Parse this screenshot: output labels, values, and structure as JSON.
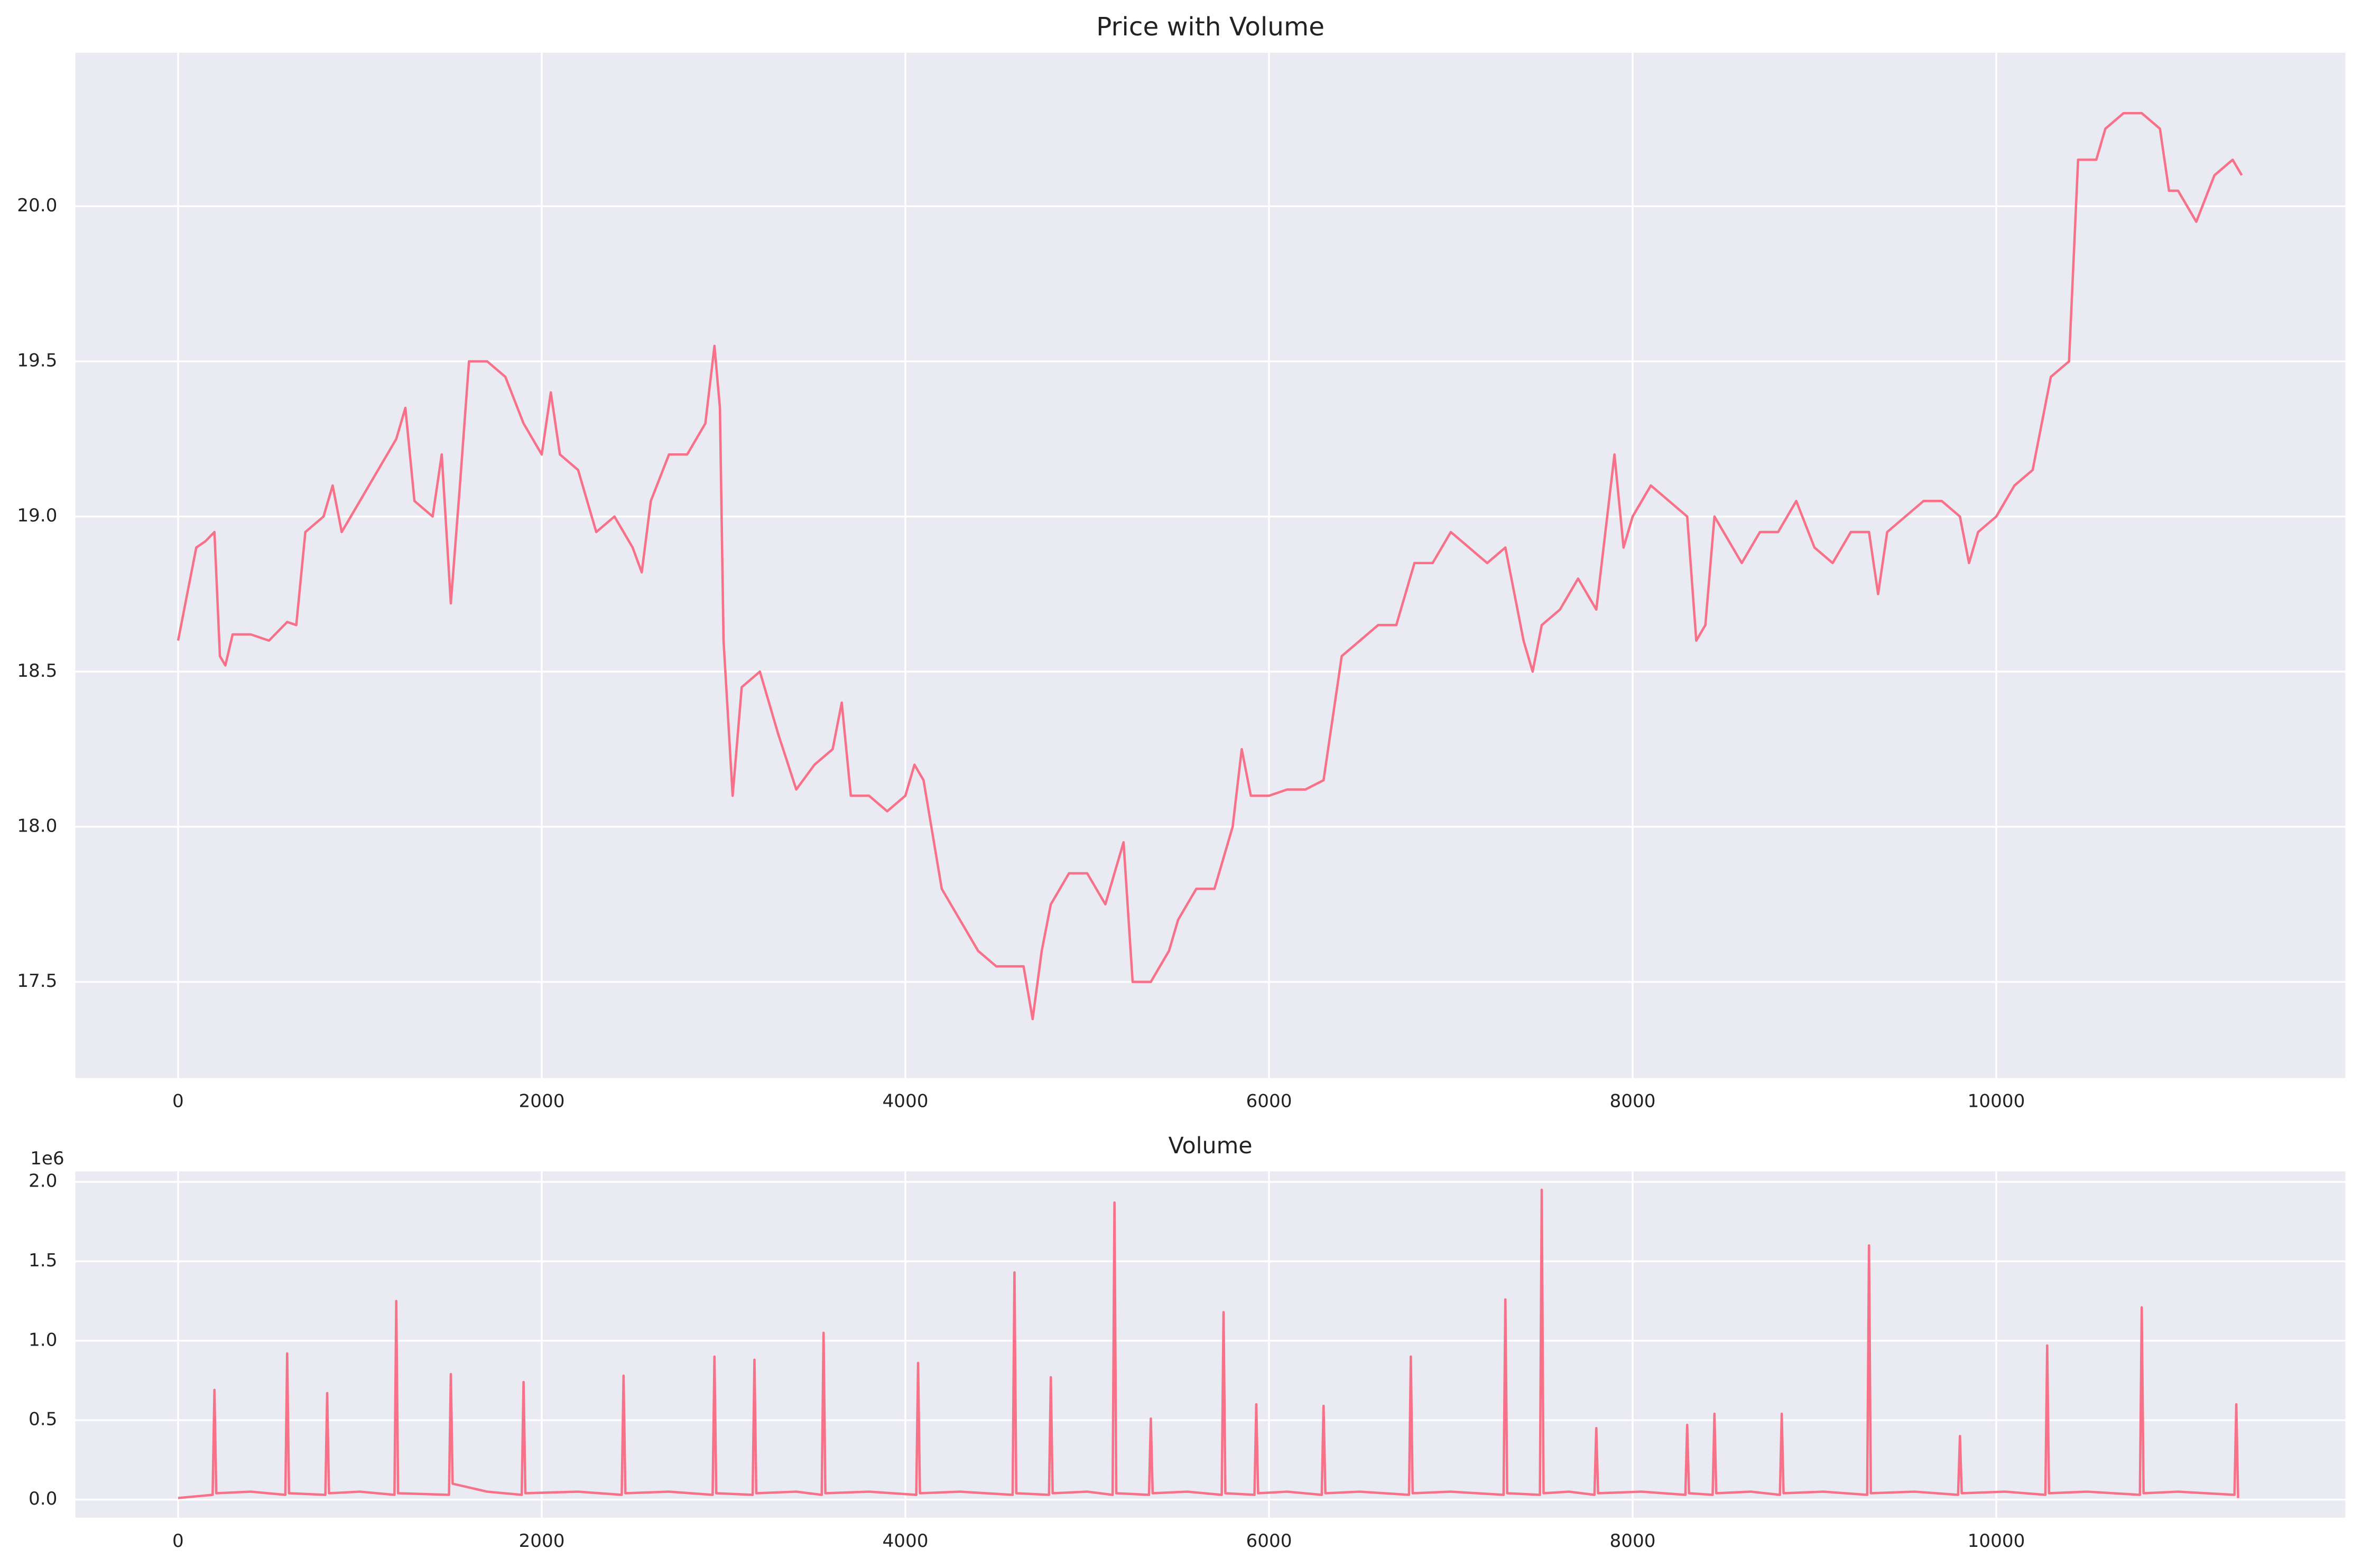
{
  "chart_data": [
    {
      "type": "line",
      "title": "Price with Volume",
      "color": "#f77189",
      "grid": true,
      "x": [
        0,
        50,
        100,
        150,
        200,
        230,
        260,
        300,
        400,
        500,
        600,
        650,
        700,
        800,
        850,
        900,
        1000,
        1100,
        1200,
        1250,
        1300,
        1400,
        1450,
        1500,
        1550,
        1600,
        1700,
        1800,
        1900,
        2000,
        2050,
        2100,
        2200,
        2300,
        2400,
        2500,
        2550,
        2600,
        2700,
        2800,
        2900,
        2950,
        2980,
        3000,
        3050,
        3100,
        3200,
        3300,
        3400,
        3500,
        3600,
        3650,
        3700,
        3800,
        3900,
        4000,
        4050,
        4100,
        4200,
        4300,
        4400,
        4500,
        4600,
        4650,
        4700,
        4750,
        4800,
        4900,
        5000,
        5100,
        5200,
        5250,
        5350,
        5450,
        5500,
        5600,
        5700,
        5800,
        5850,
        5900,
        6000,
        6100,
        6200,
        6300,
        6400,
        6500,
        6600,
        6700,
        6800,
        6900,
        7000,
        7100,
        7200,
        7300,
        7400,
        7450,
        7500,
        7600,
        7700,
        7800,
        7900,
        7950,
        8000,
        8100,
        8200,
        8300,
        8350,
        8400,
        8450,
        8500,
        8600,
        8700,
        8800,
        8900,
        9000,
        9100,
        9200,
        9300,
        9350,
        9400,
        9500,
        9600,
        9700,
        9800,
        9850,
        9900,
        10000,
        10100,
        10200,
        10300,
        10400,
        10450,
        10550,
        10600,
        10700,
        10800,
        10900,
        10950,
        11000,
        11100,
        11200,
        11300,
        11350
      ],
      "values": [
        18.6,
        18.75,
        18.9,
        18.92,
        18.95,
        18.55,
        18.52,
        18.62,
        18.62,
        18.6,
        18.66,
        18.65,
        18.95,
        19.0,
        19.1,
        18.95,
        19.05,
        19.15,
        19.25,
        19.35,
        19.05,
        19.0,
        19.2,
        18.72,
        19.1,
        19.5,
        19.5,
        19.45,
        19.3,
        19.2,
        19.4,
        19.2,
        19.15,
        18.95,
        19.0,
        18.9,
        18.82,
        19.05,
        19.2,
        19.2,
        19.3,
        19.55,
        19.35,
        18.6,
        18.1,
        18.45,
        18.5,
        18.3,
        18.12,
        18.2,
        18.25,
        18.4,
        18.1,
        18.1,
        18.05,
        18.1,
        18.2,
        18.15,
        17.8,
        17.7,
        17.6,
        17.55,
        17.55,
        17.55,
        17.38,
        17.6,
        17.75,
        17.85,
        17.85,
        17.75,
        17.95,
        17.5,
        17.5,
        17.6,
        17.7,
        17.8,
        17.8,
        18.0,
        18.25,
        18.1,
        18.1,
        18.12,
        18.12,
        18.15,
        18.55,
        18.6,
        18.65,
        18.65,
        18.85,
        18.85,
        18.95,
        18.9,
        18.85,
        18.9,
        18.6,
        18.5,
        18.65,
        18.7,
        18.8,
        18.7,
        19.2,
        18.9,
        19.0,
        19.1,
        19.05,
        19.0,
        18.6,
        18.65,
        19.0,
        18.95,
        18.85,
        18.95,
        18.95,
        19.05,
        18.9,
        18.85,
        18.95,
        18.95,
        18.75,
        18.95,
        19.0,
        19.05,
        19.05,
        19.0,
        18.85,
        18.95,
        19.0,
        19.1,
        19.15,
        19.45,
        19.5,
        20.15,
        20.15,
        20.25,
        20.3,
        20.3,
        20.25,
        20.05,
        20.05,
        19.95,
        20.1,
        20.15,
        20.1
      ],
      "xlim": [
        -565,
        11920
      ],
      "xticks": [
        0,
        2000,
        4000,
        6000,
        8000,
        10000
      ],
      "ylim": [
        17.19,
        20.495
      ],
      "yticks": [
        17.5,
        {
          "value": 18,
          "label": "18.0"
        },
        18.5,
        {
          "value": 19,
          "label": "19.0"
        },
        19.5,
        {
          "value": 20,
          "label": "20.0"
        }
      ]
    },
    {
      "type": "line",
      "title": "Volume",
      "offset_label": "1e6",
      "color": "#f77189",
      "grid": true,
      "x": [
        0,
        190,
        200,
        210,
        400,
        590,
        600,
        610,
        810,
        820,
        830,
        1000,
        1190,
        1200,
        1210,
        1490,
        1500,
        1510,
        1700,
        1890,
        1900,
        1910,
        2200,
        2440,
        2450,
        2460,
        2700,
        2940,
        2950,
        2960,
        3160,
        3170,
        3180,
        3400,
        3540,
        3550,
        3560,
        3800,
        4060,
        4070,
        4080,
        4300,
        4590,
        4600,
        4610,
        4790,
        4800,
        4810,
        5000,
        5140,
        5150,
        5160,
        5340,
        5350,
        5360,
        5550,
        5740,
        5750,
        5760,
        5920,
        5930,
        5940,
        6100,
        6290,
        6300,
        6310,
        6500,
        6770,
        6780,
        6790,
        7000,
        7290,
        7300,
        7310,
        7490,
        7500,
        7510,
        7650,
        7790,
        7800,
        7810,
        8050,
        8290,
        8300,
        8310,
        8440,
        8450,
        8460,
        8650,
        8810,
        8820,
        8830,
        9050,
        9290,
        9300,
        9310,
        9550,
        9790,
        9800,
        9810,
        10050,
        10270,
        10280,
        10290,
        10500,
        10790,
        10800,
        10810,
        11000,
        11310,
        11320,
        11330
      ],
      "values": [
        0.01,
        0.03,
        0.69,
        0.04,
        0.05,
        0.03,
        0.92,
        0.04,
        0.03,
        0.67,
        0.04,
        0.05,
        0.03,
        1.25,
        0.04,
        0.03,
        0.79,
        0.1,
        0.05,
        0.03,
        0.74,
        0.04,
        0.05,
        0.03,
        0.78,
        0.04,
        0.05,
        0.03,
        0.9,
        0.04,
        0.03,
        0.88,
        0.04,
        0.05,
        0.03,
        1.05,
        0.04,
        0.05,
        0.03,
        0.86,
        0.04,
        0.05,
        0.03,
        1.43,
        0.04,
        0.03,
        0.77,
        0.04,
        0.05,
        0.03,
        1.87,
        0.04,
        0.03,
        0.51,
        0.04,
        0.05,
        0.03,
        1.18,
        0.04,
        0.03,
        0.6,
        0.04,
        0.05,
        0.03,
        0.59,
        0.04,
        0.05,
        0.03,
        0.9,
        0.04,
        0.05,
        0.03,
        1.26,
        0.04,
        0.03,
        1.95,
        0.04,
        0.05,
        0.03,
        0.45,
        0.04,
        0.05,
        0.03,
        0.47,
        0.04,
        0.03,
        0.54,
        0.04,
        0.05,
        0.03,
        0.54,
        0.04,
        0.05,
        0.03,
        1.6,
        0.04,
        0.05,
        0.03,
        0.4,
        0.04,
        0.05,
        0.03,
        0.97,
        0.04,
        0.05,
        0.03,
        1.21,
        0.04,
        0.05,
        0.03,
        0.6,
        0.01
      ],
      "xlim": [
        -565,
        11920
      ],
      "xticks": [
        0,
        2000,
        4000,
        6000,
        8000,
        10000
      ],
      "ylim": [
        -0.114,
        2.066
      ],
      "yticks": [
        {
          "value": 0,
          "label": "0.0"
        },
        0.5,
        {
          "value": 1,
          "label": "1.0"
        },
        1.5,
        {
          "value": 2,
          "label": "2.0"
        }
      ]
    }
  ]
}
